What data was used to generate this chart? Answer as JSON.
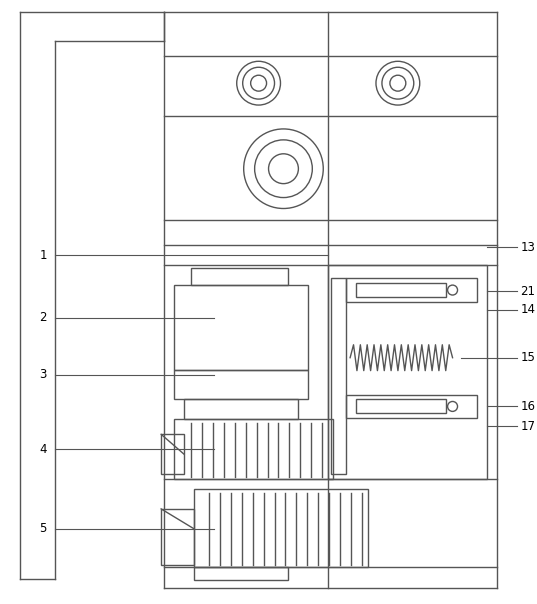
{
  "fig_width": 5.37,
  "fig_height": 6.04,
  "dpi": 100,
  "bg_color": "#ffffff",
  "lc": "#555555",
  "lw": 1.0
}
